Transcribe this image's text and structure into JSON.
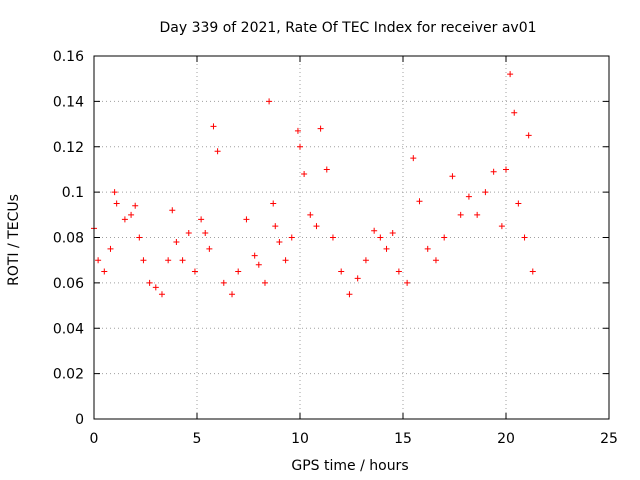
{
  "chart_data": {
    "type": "scatter",
    "title": "Day 339 of 2021, Rate Of TEC Index for receiver av01",
    "xlabel": "GPS time / hours",
    "ylabel": "ROTI / TECUs",
    "xlim": [
      0,
      25
    ],
    "ylim": [
      0,
      0.16
    ],
    "x_ticks": [
      "0",
      "5",
      "10",
      "15",
      "20",
      "25"
    ],
    "y_ticks": [
      "0",
      "0.02",
      "0.04",
      "0.06",
      "0.08",
      "0.1",
      "0.12",
      "0.14",
      "0.16"
    ],
    "grid": true,
    "marker": "+",
    "color": "#ff0000",
    "series": [
      {
        "x": [
          0.0,
          0.2,
          0.5,
          0.8,
          1.0,
          1.1,
          1.5,
          1.8,
          2.0,
          2.2,
          2.4,
          2.7,
          3.0,
          3.3,
          3.6,
          3.8,
          4.0,
          4.3,
          4.6,
          4.9,
          5.2,
          5.4,
          5.6,
          5.8,
          6.0,
          6.3,
          6.7,
          7.0,
          7.4,
          7.8,
          8.0,
          8.3,
          8.5,
          8.7,
          8.8,
          9.0,
          9.3,
          9.6,
          9.9,
          10.0,
          10.2,
          10.5,
          10.8,
          11.0,
          11.3,
          11.6,
          12.0,
          12.4,
          12.8,
          13.2,
          13.6,
          13.9,
          14.2,
          14.5,
          14.8,
          15.2,
          15.5,
          15.8,
          16.2,
          16.6,
          17.0,
          17.4,
          17.8,
          18.2,
          18.6,
          19.0,
          19.4,
          19.8,
          20.0,
          20.2,
          20.4,
          20.6,
          20.9,
          21.1,
          21.3
        ],
        "y": [
          0.084,
          0.07,
          0.065,
          0.075,
          0.1,
          0.095,
          0.088,
          0.09,
          0.094,
          0.08,
          0.07,
          0.06,
          0.058,
          0.055,
          0.07,
          0.092,
          0.078,
          0.07,
          0.082,
          0.065,
          0.088,
          0.082,
          0.075,
          0.129,
          0.118,
          0.06,
          0.055,
          0.065,
          0.088,
          0.072,
          0.068,
          0.06,
          0.14,
          0.095,
          0.085,
          0.078,
          0.07,
          0.08,
          0.127,
          0.12,
          0.108,
          0.09,
          0.085,
          0.128,
          0.11,
          0.08,
          0.065,
          0.055,
          0.062,
          0.07,
          0.083,
          0.08,
          0.075,
          0.082,
          0.065,
          0.06,
          0.115,
          0.096,
          0.075,
          0.07,
          0.08,
          0.107,
          0.09,
          0.098,
          0.09,
          0.1,
          0.109,
          0.085,
          0.11,
          0.152,
          0.135,
          0.095,
          0.08,
          0.125,
          0.065
        ]
      }
    ]
  }
}
